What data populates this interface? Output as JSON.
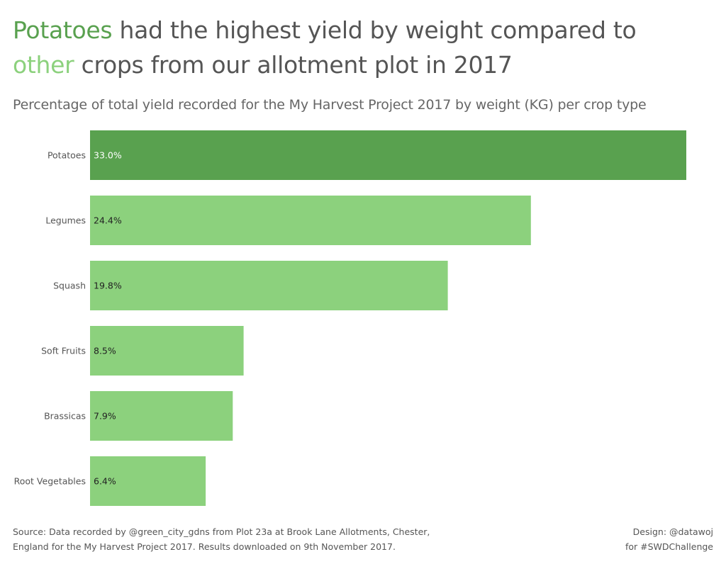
{
  "title": {
    "highlight_1": "Potatoes",
    "part_1": " had the highest yield by weight compared to",
    "highlight_2": "other",
    "part_2": " crops from our allotment plot in 2017"
  },
  "subtitle": "Percentage of total yield recorded for the My Harvest Project 2017 by weight (KG) per crop type",
  "colors": {
    "highlight": "#59a14f",
    "other": "#8cd17d",
    "text": "#555555"
  },
  "chart_data": {
    "type": "bar",
    "orientation": "horizontal",
    "categories": [
      "Potatoes",
      "Legumes",
      "Squash",
      "Soft Fruits",
      "Brassicas",
      "Root Vegetables"
    ],
    "values": [
      33.0,
      24.4,
      19.8,
      8.5,
      7.9,
      6.4
    ],
    "labels": [
      "33.0%",
      "24.4%",
      "19.8%",
      "8.5%",
      "7.9%",
      "6.4%"
    ],
    "highlighted": "Potatoes",
    "xlim": [
      0,
      33.0
    ],
    "grid": false,
    "xlabel": "",
    "ylabel": ""
  },
  "footer": {
    "source_line_1": "Source: Data recorded by @green_city_gdns from Plot 23a at Brook Lane Allotments, Chester,",
    "source_line_2": "England for the My Harvest Project 2017.  Results downloaded on 9th November 2017.",
    "credit_line_1": "Design: @datawoj",
    "credit_line_2": "for #SWDChallenge"
  }
}
